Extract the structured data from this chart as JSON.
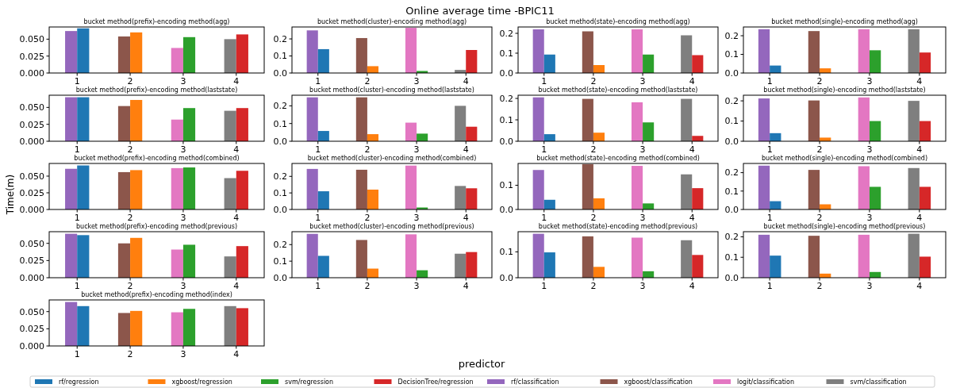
{
  "chart_data": [
    {
      "type": "other",
      "title": "Online average time -BPIC11",
      "xlabel": "predictor",
      "ylabel": "Time(m)"
    },
    {
      "type": "bar",
      "subtitle": "bucket method(prefix)-encoding method(agg)",
      "legend": "bottom",
      "categories": [
        "1",
        "2",
        "3",
        "4"
      ],
      "ylim": [
        0,
        0.068
      ],
      "yticks": [
        {
          "value": 0,
          "label": "0.000"
        },
        {
          "value": 0.025,
          "label": "0.025"
        },
        {
          "value": 0.05,
          "label": "0.050"
        }
      ],
      "series": [
        {
          "name": "rf/regression",
          "color": "#1f77b4",
          "values": [
            0.066,
            null,
            null,
            null
          ]
        },
        {
          "name": "xgboost/regression",
          "color": "#ff7f0e",
          "values": [
            null,
            0.06,
            null,
            null
          ]
        },
        {
          "name": "svm/regression",
          "color": "#2ca02c",
          "values": [
            null,
            null,
            0.053,
            null
          ]
        },
        {
          "name": "DecisionTree/regression",
          "color": "#d62728",
          "values": [
            null,
            null,
            null,
            0.057
          ]
        },
        {
          "name": "rf/classification",
          "color": "#9467bd",
          "values": [
            0.062,
            null,
            null,
            null
          ]
        },
        {
          "name": "xgboost/classification",
          "color": "#8c564b",
          "values": [
            null,
            0.054,
            null,
            null
          ]
        },
        {
          "name": "logit/classification",
          "color": "#e377c2",
          "values": [
            null,
            null,
            0.037,
            null
          ]
        },
        {
          "name": "svm/classification",
          "color": "#7f7f7f",
          "values": [
            null,
            null,
            null,
            0.05
          ]
        }
      ]
    },
    {
      "type": "bar",
      "subtitle": "bucket method(cluster)-encoding method(agg)",
      "categories": [
        "1",
        "2",
        "3",
        "4"
      ],
      "ylim": [
        0,
        0.27
      ],
      "yticks": [
        {
          "value": 0,
          "label": "0.0"
        },
        {
          "value": 0.1,
          "label": "0.1"
        },
        {
          "value": 0.2,
          "label": "0.2"
        }
      ],
      "series": [
        {
          "color": "#1f77b4",
          "values": [
            0.14,
            null,
            null,
            null
          ]
        },
        {
          "color": "#ff7f0e",
          "values": [
            null,
            0.04,
            null,
            null
          ]
        },
        {
          "color": "#2ca02c",
          "values": [
            null,
            null,
            0.012,
            null
          ]
        },
        {
          "color": "#d62728",
          "values": [
            null,
            null,
            null,
            0.135
          ]
        },
        {
          "color": "#9467bd",
          "values": [
            0.25,
            null,
            null,
            null
          ]
        },
        {
          "color": "#8c564b",
          "values": [
            null,
            0.205,
            null,
            null
          ]
        },
        {
          "color": "#e377c2",
          "values": [
            null,
            null,
            0.265,
            null
          ]
        },
        {
          "color": "#7f7f7f",
          "values": [
            null,
            null,
            null,
            0.018
          ]
        }
      ]
    },
    {
      "type": "bar",
      "subtitle": "bucket method(state)-encoding method(agg)",
      "categories": [
        "1",
        "2",
        "3",
        "4"
      ],
      "ylim": [
        0,
        0.232
      ],
      "yticks": [
        {
          "value": 0,
          "label": "0.0"
        },
        {
          "value": 0.1,
          "label": "0.1"
        },
        {
          "value": 0.2,
          "label": "0.2"
        }
      ],
      "series": [
        {
          "color": "#1f77b4",
          "values": [
            0.093,
            null,
            null,
            null
          ]
        },
        {
          "color": "#ff7f0e",
          "values": [
            null,
            0.04,
            null,
            null
          ]
        },
        {
          "color": "#2ca02c",
          "values": [
            null,
            null,
            0.093,
            null
          ]
        },
        {
          "color": "#d62728",
          "values": [
            null,
            null,
            null,
            0.09
          ]
        },
        {
          "color": "#9467bd",
          "values": [
            0.22,
            null,
            null,
            null
          ]
        },
        {
          "color": "#8c564b",
          "values": [
            null,
            0.21,
            null,
            null
          ]
        },
        {
          "color": "#e377c2",
          "values": [
            null,
            null,
            0.22,
            null
          ]
        },
        {
          "color": "#7f7f7f",
          "values": [
            null,
            null,
            null,
            0.19
          ]
        }
      ]
    },
    {
      "type": "bar",
      "subtitle": "bucket method(single)-encoding method(agg)",
      "categories": [
        "1",
        "2",
        "3",
        "4"
      ],
      "ylim": [
        0,
        0.247
      ],
      "yticks": [
        {
          "value": 0,
          "label": "0.0"
        },
        {
          "value": 0.1,
          "label": "0.1"
        },
        {
          "value": 0.2,
          "label": "0.2"
        }
      ],
      "series": [
        {
          "color": "#1f77b4",
          "values": [
            0.04,
            null,
            null,
            null
          ]
        },
        {
          "color": "#ff7f0e",
          "values": [
            null,
            0.025,
            null,
            null
          ]
        },
        {
          "color": "#2ca02c",
          "values": [
            null,
            null,
            0.122,
            null
          ]
        },
        {
          "color": "#d62728",
          "values": [
            null,
            null,
            null,
            0.11
          ]
        },
        {
          "color": "#9467bd",
          "values": [
            0.235,
            null,
            null,
            null
          ]
        },
        {
          "color": "#8c564b",
          "values": [
            null,
            0.225,
            null,
            null
          ]
        },
        {
          "color": "#e377c2",
          "values": [
            null,
            null,
            0.235,
            null
          ]
        },
        {
          "color": "#7f7f7f",
          "values": [
            null,
            null,
            null,
            0.235
          ]
        }
      ]
    },
    {
      "type": "bar",
      "subtitle": "bucket method(prefix)-encoding method(laststate)",
      "categories": [
        "1",
        "2",
        "3",
        "4"
      ],
      "ylim": [
        0,
        0.068
      ],
      "yticks": [
        {
          "value": 0,
          "label": "0.000"
        },
        {
          "value": 0.025,
          "label": "0.025"
        },
        {
          "value": 0.05,
          "label": "0.050"
        }
      ],
      "series": [
        {
          "color": "#1f77b4",
          "values": [
            0.065,
            null,
            null,
            null
          ]
        },
        {
          "color": "#ff7f0e",
          "values": [
            null,
            0.061,
            null,
            null
          ]
        },
        {
          "color": "#2ca02c",
          "values": [
            null,
            null,
            0.049,
            null
          ]
        },
        {
          "color": "#d62728",
          "values": [
            null,
            null,
            null,
            0.049
          ]
        },
        {
          "color": "#9467bd",
          "values": [
            0.065,
            null,
            null,
            null
          ]
        },
        {
          "color": "#8c564b",
          "values": [
            null,
            0.052,
            null,
            null
          ]
        },
        {
          "color": "#e377c2",
          "values": [
            null,
            null,
            0.032,
            null
          ]
        },
        {
          "color": "#7f7f7f",
          "values": [
            null,
            null,
            null,
            0.045
          ]
        }
      ]
    },
    {
      "type": "bar",
      "subtitle": "bucket method(cluster)-encoding method(laststate)",
      "categories": [
        "1",
        "2",
        "3",
        "4"
      ],
      "ylim": [
        0,
        0.26
      ],
      "yticks": [
        {
          "value": 0,
          "label": "0.0"
        },
        {
          "value": 0.1,
          "label": "0.1"
        },
        {
          "value": 0.2,
          "label": "0.2"
        }
      ],
      "series": [
        {
          "color": "#1f77b4",
          "values": [
            0.058,
            null,
            null,
            null
          ]
        },
        {
          "color": "#ff7f0e",
          "values": [
            null,
            0.04,
            null,
            null
          ]
        },
        {
          "color": "#2ca02c",
          "values": [
            null,
            null,
            0.043,
            null
          ]
        },
        {
          "color": "#d62728",
          "values": [
            null,
            null,
            null,
            0.082
          ]
        },
        {
          "color": "#9467bd",
          "values": [
            0.248,
            null,
            null,
            null
          ]
        },
        {
          "color": "#8c564b",
          "values": [
            null,
            0.248,
            null,
            null
          ]
        },
        {
          "color": "#e377c2",
          "values": [
            null,
            null,
            0.105,
            null
          ]
        },
        {
          "color": "#7f7f7f",
          "values": [
            null,
            null,
            null,
            0.2
          ]
        }
      ]
    },
    {
      "type": "bar",
      "subtitle": "bucket method(state)-encoding method(laststate)",
      "categories": [
        "1",
        "2",
        "3",
        "4"
      ],
      "ylim": [
        0,
        0.215
      ],
      "yticks": [
        {
          "value": 0,
          "label": "0.0"
        },
        {
          "value": 0.1,
          "label": "0.1"
        },
        {
          "value": 0.2,
          "label": "0.2"
        }
      ],
      "series": [
        {
          "color": "#1f77b4",
          "values": [
            0.033,
            null,
            null,
            null
          ]
        },
        {
          "color": "#ff7f0e",
          "values": [
            null,
            0.04,
            null,
            null
          ]
        },
        {
          "color": "#2ca02c",
          "values": [
            null,
            null,
            0.088,
            null
          ]
        },
        {
          "color": "#d62728",
          "values": [
            null,
            null,
            null,
            0.025
          ]
        },
        {
          "color": "#9467bd",
          "values": [
            0.205,
            null,
            null,
            null
          ]
        },
        {
          "color": "#8c564b",
          "values": [
            null,
            0.198,
            null,
            null
          ]
        },
        {
          "color": "#e377c2",
          "values": [
            null,
            null,
            0.182,
            null
          ]
        },
        {
          "color": "#7f7f7f",
          "values": [
            null,
            null,
            null,
            0.198
          ]
        }
      ]
    },
    {
      "type": "bar",
      "subtitle": "bucket method(single)-encoding method(laststate)",
      "categories": [
        "1",
        "2",
        "3",
        "4"
      ],
      "ylim": [
        0,
        0.228
      ],
      "yticks": [
        {
          "value": 0,
          "label": "0.0"
        },
        {
          "value": 0.1,
          "label": "0.1"
        },
        {
          "value": 0.2,
          "label": "0.2"
        }
      ],
      "series": [
        {
          "color": "#1f77b4",
          "values": [
            0.04,
            null,
            null,
            null
          ]
        },
        {
          "color": "#ff7f0e",
          "values": [
            null,
            0.018,
            null,
            null
          ]
        },
        {
          "color": "#2ca02c",
          "values": [
            null,
            null,
            0.1,
            null
          ]
        },
        {
          "color": "#d62728",
          "values": [
            null,
            null,
            null,
            0.1
          ]
        },
        {
          "color": "#9467bd",
          "values": [
            0.212,
            null,
            null,
            null
          ]
        },
        {
          "color": "#8c564b",
          "values": [
            null,
            0.202,
            null,
            null
          ]
        },
        {
          "color": "#e377c2",
          "values": [
            null,
            null,
            0.217,
            null
          ]
        },
        {
          "color": "#7f7f7f",
          "values": [
            null,
            null,
            null,
            0.2
          ]
        }
      ]
    },
    {
      "type": "bar",
      "subtitle": "bucket method(prefix)-encoding method(combined)",
      "categories": [
        "1",
        "2",
        "3",
        "4"
      ],
      "ylim": [
        0,
        0.069
      ],
      "yticks": [
        {
          "value": 0,
          "label": "0.000"
        },
        {
          "value": 0.025,
          "label": "0.025"
        },
        {
          "value": 0.05,
          "label": "0.050"
        }
      ],
      "series": [
        {
          "color": "#1f77b4",
          "values": [
            0.066,
            null,
            null,
            null
          ]
        },
        {
          "color": "#ff7f0e",
          "values": [
            null,
            0.059,
            null,
            null
          ]
        },
        {
          "color": "#2ca02c",
          "values": [
            null,
            null,
            0.063,
            null
          ]
        },
        {
          "color": "#d62728",
          "values": [
            null,
            null,
            null,
            0.058
          ]
        },
        {
          "color": "#9467bd",
          "values": [
            0.061,
            null,
            null,
            null
          ]
        },
        {
          "color": "#8c564b",
          "values": [
            null,
            0.056,
            null,
            null
          ]
        },
        {
          "color": "#e377c2",
          "values": [
            null,
            null,
            0.062,
            null
          ]
        },
        {
          "color": "#7f7f7f",
          "values": [
            null,
            null,
            null,
            0.047
          ]
        }
      ]
    },
    {
      "type": "bar",
      "subtitle": "bucket method(cluster)-encoding method(combined)",
      "categories": [
        "1",
        "2",
        "3",
        "4"
      ],
      "ylim": [
        0,
        0.278
      ],
      "yticks": [
        {
          "value": 0,
          "label": "0.0"
        },
        {
          "value": 0.1,
          "label": "0.1"
        },
        {
          "value": 0.2,
          "label": "0.2"
        }
      ],
      "series": [
        {
          "color": "#1f77b4",
          "values": [
            0.11,
            null,
            null,
            null
          ]
        },
        {
          "color": "#ff7f0e",
          "values": [
            null,
            0.12,
            null,
            null
          ]
        },
        {
          "color": "#2ca02c",
          "values": [
            null,
            null,
            0.012,
            null
          ]
        },
        {
          "color": "#d62728",
          "values": [
            null,
            null,
            null,
            0.128
          ]
        },
        {
          "color": "#9467bd",
          "values": [
            0.245,
            null,
            null,
            null
          ]
        },
        {
          "color": "#8c564b",
          "values": [
            null,
            0.24,
            null,
            null
          ]
        },
        {
          "color": "#e377c2",
          "values": [
            null,
            null,
            0.265,
            null
          ]
        },
        {
          "color": "#7f7f7f",
          "values": [
            null,
            null,
            null,
            0.142
          ]
        }
      ]
    },
    {
      "type": "bar",
      "subtitle": "bucket method(state)-encoding method(combined)",
      "categories": [
        "1",
        "2",
        "3",
        "4"
      ],
      "ylim": [
        0,
        0.19
      ],
      "yticks": [
        {
          "value": 0,
          "label": "0.0"
        },
        {
          "value": 0.1,
          "label": "0.1"
        }
      ],
      "series": [
        {
          "color": "#1f77b4",
          "values": [
            0.04,
            null,
            null,
            null
          ]
        },
        {
          "color": "#ff7f0e",
          "values": [
            null,
            0.046,
            null,
            null
          ]
        },
        {
          "color": "#2ca02c",
          "values": [
            null,
            null,
            0.025,
            null
          ]
        },
        {
          "color": "#d62728",
          "values": [
            null,
            null,
            null,
            0.088
          ]
        },
        {
          "color": "#9467bd",
          "values": [
            0.163,
            null,
            null,
            null
          ]
        },
        {
          "color": "#8c564b",
          "values": [
            null,
            0.187,
            null,
            null
          ]
        },
        {
          "color": "#e377c2",
          "values": [
            null,
            null,
            0.18,
            null
          ]
        },
        {
          "color": "#7f7f7f",
          "values": [
            null,
            null,
            null,
            0.145
          ]
        }
      ]
    },
    {
      "type": "bar",
      "subtitle": "bucket method(single)-encoding method(combined)",
      "categories": [
        "1",
        "2",
        "3",
        "4"
      ],
      "ylim": [
        0,
        0.25
      ],
      "yticks": [
        {
          "value": 0,
          "label": "0.0"
        },
        {
          "value": 0.1,
          "label": "0.1"
        },
        {
          "value": 0.2,
          "label": "0.2"
        }
      ],
      "series": [
        {
          "color": "#1f77b4",
          "values": [
            0.045,
            null,
            null,
            null
          ]
        },
        {
          "color": "#ff7f0e",
          "values": [
            null,
            0.028,
            null,
            null
          ]
        },
        {
          "color": "#2ca02c",
          "values": [
            null,
            null,
            0.123,
            null
          ]
        },
        {
          "color": "#d62728",
          "values": [
            null,
            null,
            null,
            0.123
          ]
        },
        {
          "color": "#9467bd",
          "values": [
            0.238,
            null,
            null,
            null
          ]
        },
        {
          "color": "#8c564b",
          "values": [
            null,
            0.215,
            null,
            null
          ]
        },
        {
          "color": "#e377c2",
          "values": [
            null,
            null,
            0.235,
            null
          ]
        },
        {
          "color": "#7f7f7f",
          "values": [
            null,
            null,
            null,
            0.225
          ]
        }
      ]
    },
    {
      "type": "bar",
      "subtitle": "bucket method(prefix)-encoding method(previous)",
      "categories": [
        "1",
        "2",
        "3",
        "4"
      ],
      "ylim": [
        0,
        0.067
      ],
      "yticks": [
        {
          "value": 0,
          "label": "0.000"
        },
        {
          "value": 0.025,
          "label": "0.025"
        },
        {
          "value": 0.05,
          "label": "0.050"
        }
      ],
      "series": [
        {
          "color": "#1f77b4",
          "values": [
            0.062,
            null,
            null,
            null
          ]
        },
        {
          "color": "#ff7f0e",
          "values": [
            null,
            0.058,
            null,
            null
          ]
        },
        {
          "color": "#2ca02c",
          "values": [
            null,
            null,
            0.048,
            null
          ]
        },
        {
          "color": "#d62728",
          "values": [
            null,
            null,
            null,
            0.046
          ]
        },
        {
          "color": "#9467bd",
          "values": [
            0.064,
            null,
            null,
            null
          ]
        },
        {
          "color": "#8c564b",
          "values": [
            null,
            0.05,
            null,
            null
          ]
        },
        {
          "color": "#e377c2",
          "values": [
            null,
            null,
            0.041,
            null
          ]
        },
        {
          "color": "#7f7f7f",
          "values": [
            null,
            null,
            null,
            0.031
          ]
        }
      ]
    },
    {
      "type": "bar",
      "subtitle": "bucket method(cluster)-encoding method(previous)",
      "categories": [
        "1",
        "2",
        "3",
        "4"
      ],
      "ylim": [
        0,
        0.278
      ],
      "yticks": [
        {
          "value": 0,
          "label": "0.0"
        },
        {
          "value": 0.1,
          "label": "0.1"
        },
        {
          "value": 0.2,
          "label": "0.2"
        }
      ],
      "series": [
        {
          "color": "#1f77b4",
          "values": [
            0.132,
            null,
            null,
            null
          ]
        },
        {
          "color": "#ff7f0e",
          "values": [
            null,
            0.055,
            null,
            null
          ]
        },
        {
          "color": "#2ca02c",
          "values": [
            null,
            null,
            0.045,
            null
          ]
        },
        {
          "color": "#d62728",
          "values": [
            null,
            null,
            null,
            0.155
          ]
        },
        {
          "color": "#9467bd",
          "values": [
            0.265,
            null,
            null,
            null
          ]
        },
        {
          "color": "#8c564b",
          "values": [
            null,
            0.228,
            null,
            null
          ]
        },
        {
          "color": "#e377c2",
          "values": [
            null,
            null,
            0.262,
            null
          ]
        },
        {
          "color": "#7f7f7f",
          "values": [
            null,
            null,
            null,
            0.145
          ]
        }
      ]
    },
    {
      "type": "bar",
      "subtitle": "bucket method(state)-encoding method(previous)",
      "categories": [
        "1",
        "2",
        "3",
        "4"
      ],
      "ylim": [
        0,
        0.178
      ],
      "yticks": [
        {
          "value": 0,
          "label": "0.0"
        },
        {
          "value": 0.1,
          "label": "0.1"
        }
      ],
      "series": [
        {
          "color": "#1f77b4",
          "values": [
            0.098,
            null,
            null,
            null
          ]
        },
        {
          "color": "#ff7f0e",
          "values": [
            null,
            0.042,
            null,
            null
          ]
        },
        {
          "color": "#2ca02c",
          "values": [
            null,
            null,
            0.025,
            null
          ]
        },
        {
          "color": "#d62728",
          "values": [
            null,
            null,
            null,
            0.088
          ]
        },
        {
          "color": "#9467bd",
          "values": [
            0.17,
            null,
            null,
            null
          ]
        },
        {
          "color": "#8c564b",
          "values": [
            null,
            0.16,
            null,
            null
          ]
        },
        {
          "color": "#e377c2",
          "values": [
            null,
            null,
            0.155,
            null
          ]
        },
        {
          "color": "#7f7f7f",
          "values": [
            null,
            null,
            null,
            0.145
          ]
        }
      ]
    },
    {
      "type": "bar",
      "subtitle": "bucket method(single)-encoding method(previous)",
      "categories": [
        "1",
        "2",
        "3",
        "4"
      ],
      "ylim": [
        0,
        0.225
      ],
      "yticks": [
        {
          "value": 0,
          "label": "0.0"
        },
        {
          "value": 0.1,
          "label": "0.1"
        },
        {
          "value": 0.2,
          "label": "0.2"
        }
      ],
      "series": [
        {
          "color": "#1f77b4",
          "values": [
            0.108,
            null,
            null,
            null
          ]
        },
        {
          "color": "#ff7f0e",
          "values": [
            null,
            0.02,
            null,
            null
          ]
        },
        {
          "color": "#2ca02c",
          "values": [
            null,
            null,
            0.028,
            null
          ]
        },
        {
          "color": "#d62728",
          "values": [
            null,
            null,
            null,
            0.103
          ]
        },
        {
          "color": "#9467bd",
          "values": [
            0.21,
            null,
            null,
            null
          ]
        },
        {
          "color": "#8c564b",
          "values": [
            null,
            0.205,
            null,
            null
          ]
        },
        {
          "color": "#e377c2",
          "values": [
            null,
            null,
            0.21,
            null
          ]
        },
        {
          "color": "#7f7f7f",
          "values": [
            null,
            null,
            null,
            0.215
          ]
        }
      ]
    },
    {
      "type": "bar",
      "subtitle": "bucket method(prefix)-encoding method(index)",
      "categories": [
        "1",
        "2",
        "3",
        "4"
      ],
      "ylim": [
        0,
        0.067
      ],
      "yticks": [
        {
          "value": 0,
          "label": "0.000"
        },
        {
          "value": 0.025,
          "label": "0.025"
        },
        {
          "value": 0.05,
          "label": "0.050"
        }
      ],
      "series": [
        {
          "color": "#1f77b4",
          "values": [
            0.058,
            null,
            null,
            null
          ]
        },
        {
          "color": "#ff7f0e",
          "values": [
            null,
            0.051,
            null,
            null
          ]
        },
        {
          "color": "#2ca02c",
          "values": [
            null,
            null,
            0.054,
            null
          ]
        },
        {
          "color": "#d62728",
          "values": [
            null,
            null,
            null,
            0.055
          ]
        },
        {
          "color": "#9467bd",
          "values": [
            0.064,
            null,
            null,
            null
          ]
        },
        {
          "color": "#8c564b",
          "values": [
            null,
            0.048,
            null,
            null
          ]
        },
        {
          "color": "#e377c2",
          "values": [
            null,
            null,
            0.049,
            null
          ]
        },
        {
          "color": "#7f7f7f",
          "values": [
            null,
            null,
            null,
            0.058
          ]
        }
      ]
    }
  ]
}
